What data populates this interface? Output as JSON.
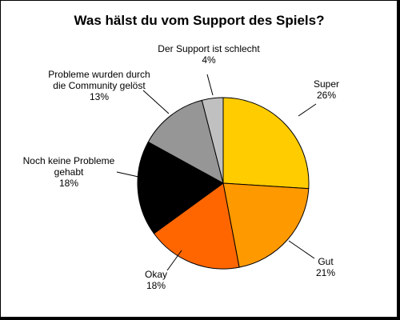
{
  "chart_data": {
    "type": "pie",
    "title": "Was hälst du vom Support des Spiels?",
    "slices": [
      {
        "label": [
          "Super"
        ],
        "value": 26,
        "pct_label": "26%",
        "color": "#FFCC00"
      },
      {
        "label": [
          "Gut"
        ],
        "value": 21,
        "pct_label": "21%",
        "color": "#FF9900"
      },
      {
        "label": [
          "Okay"
        ],
        "value": 18,
        "pct_label": "18%",
        "color": "#FF6600"
      },
      {
        "label": [
          "Noch keine Probleme",
          "gehabt"
        ],
        "value": 18,
        "pct_label": "18%",
        "color": "#000000"
      },
      {
        "label": [
          "Probleme wurden durch",
          "die Community gelöst"
        ],
        "value": 13,
        "pct_label": "13%",
        "color": "#969696"
      },
      {
        "label": [
          "Der Support ist schlecht"
        ],
        "value": 4,
        "pct_label": "4%",
        "color": "#C0C0C0"
      }
    ],
    "legend": "none"
  }
}
